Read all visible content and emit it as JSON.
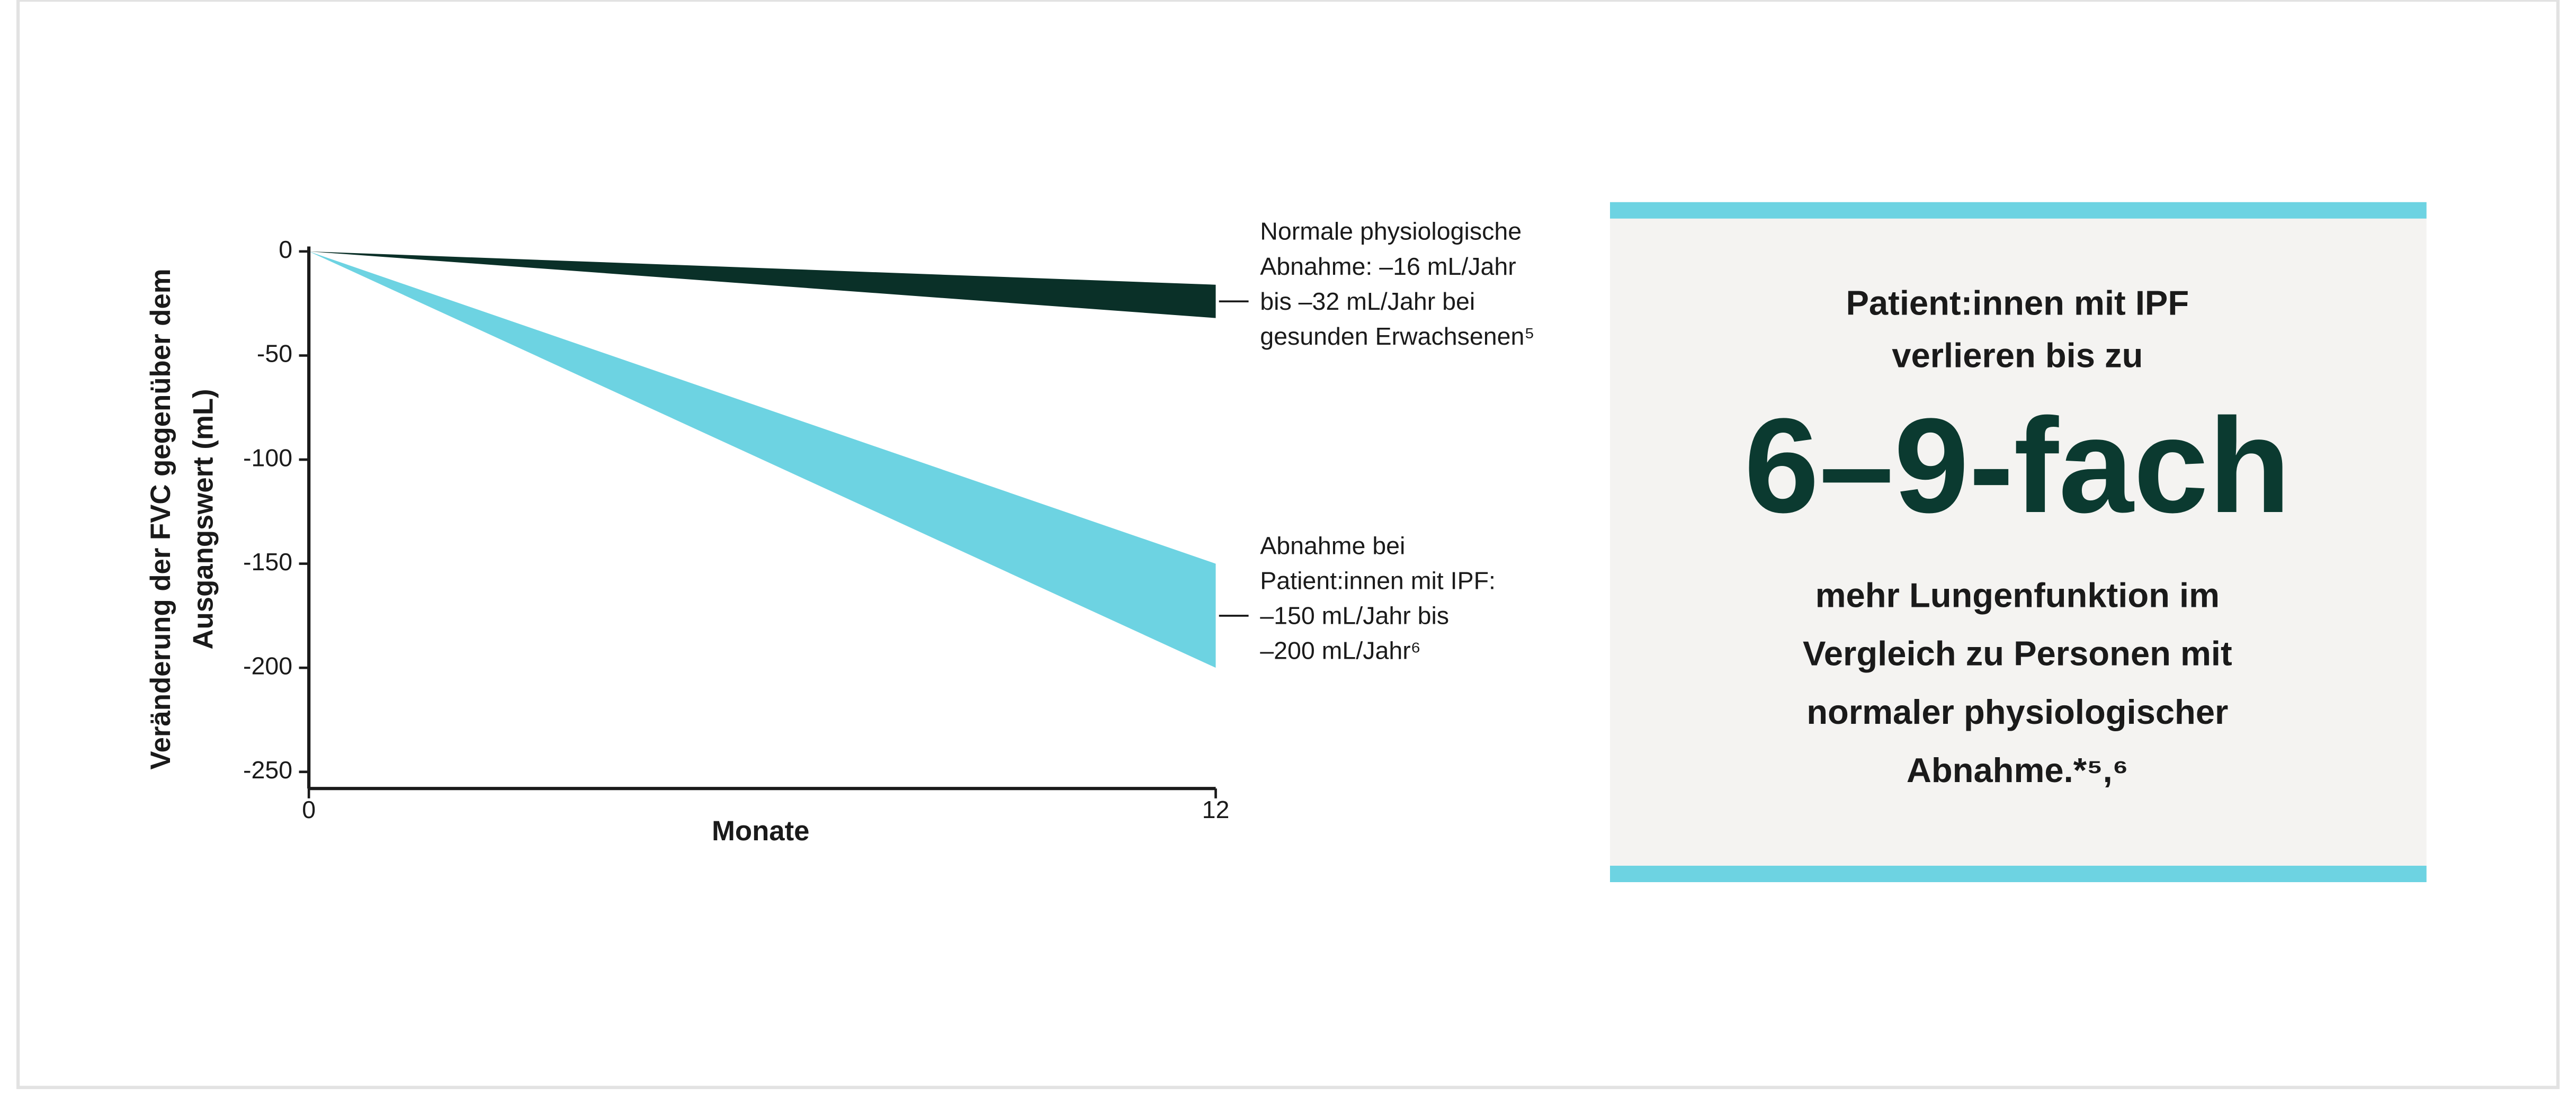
{
  "chart_data": {
    "type": "area",
    "x_label": "Monate",
    "y_label": [
      "Veränderung der FVC gegenüber dem",
      "Ausgangswert (mL)"
    ],
    "x": [
      0,
      12
    ],
    "xlim": [
      0,
      12
    ],
    "xticks": [
      0,
      12
    ],
    "ylim": [
      -258,
      0
    ],
    "yticks": [
      0,
      -50,
      -100,
      -150,
      -200,
      -250
    ],
    "series": [
      {
        "color": "#0a3028",
        "upper": [
          0,
          -16
        ],
        "lower": [
          0,
          -32
        ],
        "label": [
          "Normale physiologische",
          "Abnahme: –16 mL/Jahr",
          "bis –32 mL/Jahr bei",
          "gesunden Erwachsenen⁵"
        ]
      },
      {
        "color": "#6dd3e2",
        "upper": [
          0,
          -150
        ],
        "lower": [
          0,
          -200
        ],
        "label": [
          "Abnahme bei",
          "Patient:innen mit IPF:",
          "–150 mL/Jahr bis",
          "–200 mL/Jahr⁶"
        ]
      }
    ]
  },
  "callout": {
    "intro": [
      "Patient:innen mit IPF",
      "verlieren bis zu"
    ],
    "highlight": "6–9-fach",
    "body": [
      "mehr Lungenfunktion im",
      "Vergleich zu Personen mit",
      "normaler physiologischer",
      "Abnahme.*⁵,⁶"
    ]
  }
}
